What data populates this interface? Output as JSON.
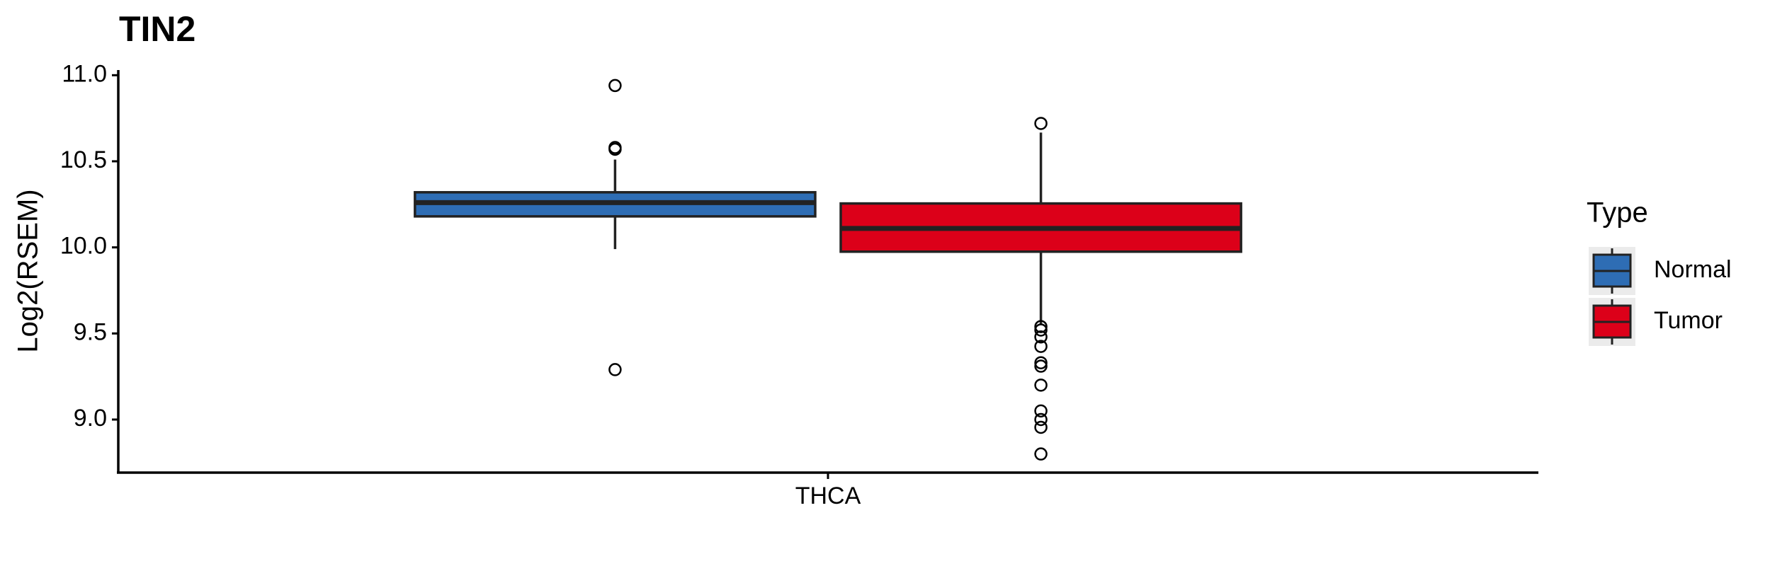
{
  "chart_data": {
    "type": "box",
    "title": "TIN2",
    "y_label": "Log2(RSEM)",
    "legend_title": "Type",
    "categories": [
      "THCA"
    ],
    "ylim": [
      8.7,
      11.03
    ],
    "yticks": [
      {
        "value": 9.0,
        "label": "9.0"
      },
      {
        "value": 9.5,
        "label": "9.5"
      },
      {
        "value": 10.0,
        "label": "10.0"
      },
      {
        "value": 10.5,
        "label": "10.5"
      },
      {
        "value": 11.0,
        "label": "11.0"
      }
    ],
    "series": [
      {
        "name": "Normal",
        "color": "#2e6db4",
        "values": [
          {
            "whisker_low": 9.99,
            "q1": 10.18,
            "median": 10.26,
            "q3": 10.32,
            "whisker_high": 10.51,
            "outliers": [
              10.94,
              10.58,
              10.57,
              9.29
            ]
          }
        ]
      },
      {
        "name": "Tumor",
        "color": "#dc0019",
        "values": [
          {
            "whisker_low": 9.55,
            "q1": 9.975,
            "median": 10.11,
            "q3": 10.255,
            "whisker_high": 10.667,
            "outliers": [
              10.72,
              9.54,
              9.52,
              9.48,
              9.425,
              9.33,
              9.31,
              9.2,
              9.05,
              9.0,
              8.955,
              8.8
            ]
          }
        ]
      }
    ]
  }
}
